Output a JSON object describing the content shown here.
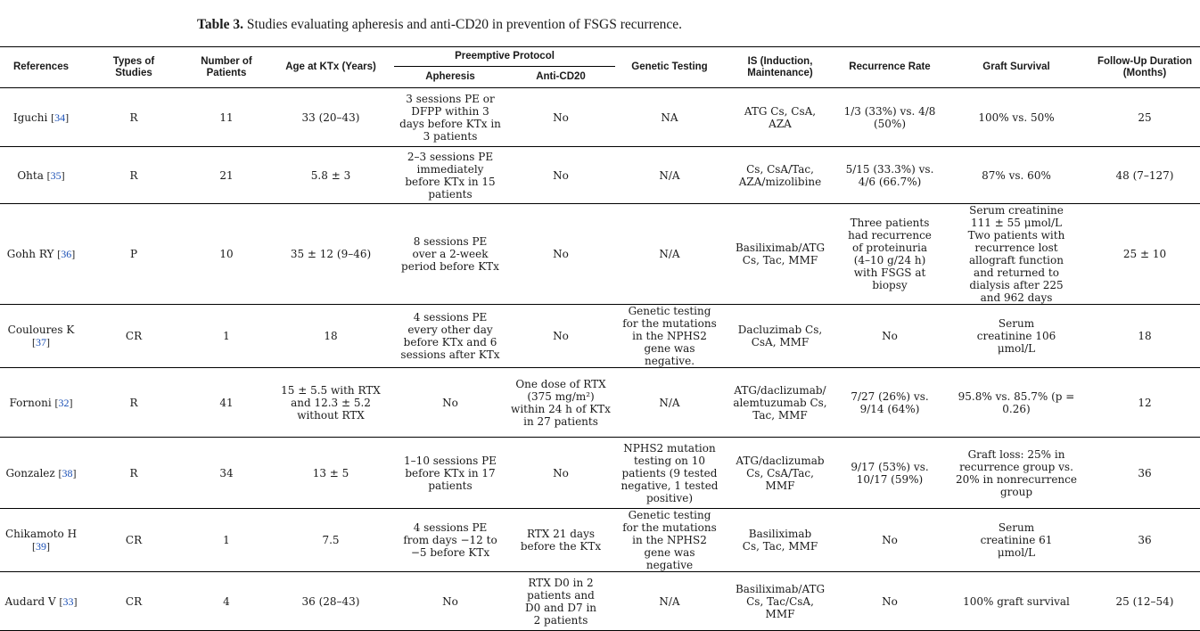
{
  "caption": {
    "label": "Table 3.",
    "text": " Studies evaluating apheresis and anti-CD20 in prevention of FSGS recurrence."
  },
  "headers": {
    "references": "References",
    "types": "Types of Studies",
    "patients": "Number of Patients",
    "age": "Age at KTx (Years)",
    "preemptive": "Preemptive Protocol",
    "apheresis": "Apheresis",
    "anticd20": "Anti-CD20",
    "genetic": "Genetic Testing",
    "is": "IS (Induction, Maintenance)",
    "recurrence": "Recurrence Rate",
    "graft": "Graft Survival",
    "followup": "Follow-Up Duration (Months)"
  },
  "rows": [
    {
      "author": "Iguchi ",
      "ref": "34",
      "type": "R",
      "n": "11",
      "age": "33 (20–43)",
      "apheresis": "3 sessions PE or DFPP within 3 days before KTx in 3 patients",
      "cd20": "No",
      "genetic": "NA",
      "is": "ATG Cs, CsA, AZA",
      "recurrence": "1/3 (33%) vs. 4/8 (50%)",
      "graft": "100% vs. 50%",
      "followup": "25"
    },
    {
      "author": "Ohta ",
      "ref": "35",
      "type": "R",
      "n": "21",
      "age": "5.8 ± 3",
      "apheresis": "2–3 sessions PE immediately before KTx in 15 patients",
      "cd20": "No",
      "genetic": "N/A",
      "is": "Cs, CsA/Tac, AZA/mizolibine",
      "recurrence": "5/15 (33.3%) vs. 4/6 (66.7%)",
      "graft": "87% vs. 60%",
      "followup": "48 (7–127)"
    },
    {
      "author": "Gohh RY ",
      "ref": "36",
      "type": "P",
      "n": "10",
      "age": "35 ± 12 (9–46)",
      "apheresis": "8 sessions PE over a 2-week period before KTx",
      "cd20": "No",
      "genetic": "N/A",
      "is": "Basiliximab/ATG Cs, Tac, MMF",
      "recurrence": "Three patients had recurrence of proteinuria (4–10 g/24 h) with FSGS at biopsy",
      "graft": "Serum creatinine 111 ± 55 μmol/L Two patients with recurrence lost allograft function and returned to dialysis after 225 and 962 days",
      "followup": "25 ± 10"
    },
    {
      "author": "Couloures K ",
      "ref": "37",
      "type": "CR",
      "n": "1",
      "age": "18",
      "apheresis": "4 sessions PE every other day before KTx and 6 sessions after KTx",
      "cd20": "No",
      "genetic": "Genetic testing for the mutations in the NPHS2 gene was negative.",
      "is": "Dacluzimab Cs, CsA, MMF",
      "recurrence": "No",
      "graft": "Serum creatinine 106 μmol/L",
      "followup": "18"
    },
    {
      "author": "Fornoni ",
      "ref": "32",
      "type": "R",
      "n": "41",
      "age": "15 ± 5.5 with RTX and 12.3 ± 5.2 without RTX",
      "apheresis": "No",
      "cd20": "One dose of RTX (375 mg/m²) within 24 h of KTx in 27 patients",
      "genetic": "N/A",
      "is": "ATG/daclizumab/ alemtuzumab Cs, Tac, MMF",
      "recurrence": "7/27 (26%) vs. 9/14 (64%)",
      "graft": "95.8% vs. 85.7% (p = 0.26)",
      "followup": "12"
    },
    {
      "author": "Gonzalez ",
      "ref": "38",
      "type": "R",
      "n": "34",
      "age": "13 ± 5",
      "apheresis": "1–10 sessions PE before KTx in 17 patients",
      "cd20": "No",
      "genetic": "NPHS2 mutation testing on 10 patients (9 tested negative, 1 tested positive)",
      "is": "ATG/daclizumab Cs, CsA/Tac, MMF",
      "recurrence": "9/17 (53%) vs. 10/17 (59%)",
      "graft": "Graft loss: 25% in recurrence group vs. 20% in nonrecurrence group",
      "followup": "36"
    },
    {
      "author": "Chikamoto H ",
      "ref": "39",
      "type": "CR",
      "n": "1",
      "age": "7.5",
      "apheresis": "4 sessions PE from days −12 to −5 before KTx",
      "cd20": "RTX 21 days before the KTx",
      "genetic": "Genetic testing for the mutations in the NPHS2 gene was negative",
      "is": "Basiliximab Cs, Tac, MMF",
      "recurrence": "No",
      "graft": "Serum creatinine 61 μmol/L",
      "followup": "36"
    },
    {
      "author": "Audard V ",
      "ref": "33",
      "type": "CR",
      "n": "4",
      "age": "36 (28–43)",
      "apheresis": "No",
      "cd20": "RTX D0 in 2 patients and D0 and D7 in 2 patients",
      "genetic": "N/A",
      "is": "Basiliximab/ATG Cs, Tac/CsA, MMF",
      "recurrence": "No",
      "graft": "100% graft survival",
      "followup": "25 (12–54)"
    }
  ]
}
